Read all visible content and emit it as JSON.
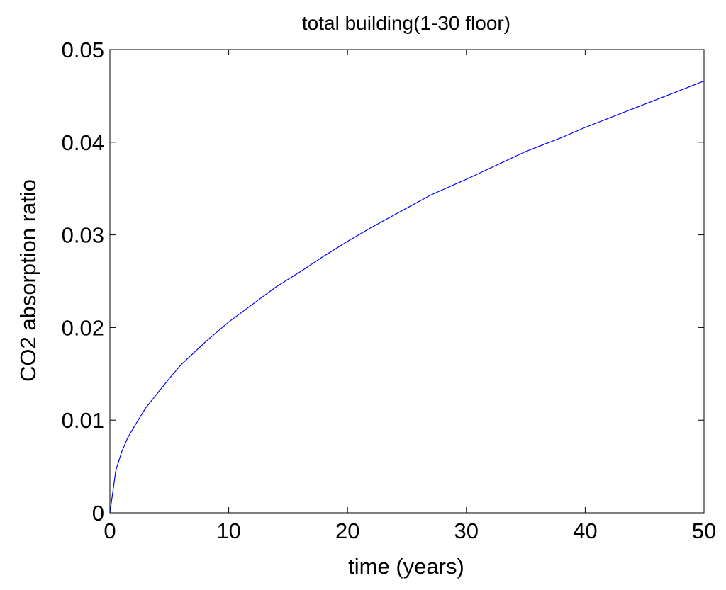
{
  "chart_data": {
    "type": "line",
    "title": "total building(1-30 floor)",
    "xlabel": "time (years)",
    "ylabel": "CO2 absorption ratio",
    "xlim": [
      0,
      50
    ],
    "ylim": [
      0,
      0.05
    ],
    "xticks": [
      0,
      10,
      20,
      30,
      40,
      50
    ],
    "xtick_labels": [
      "0",
      "10",
      "20",
      "30",
      "40",
      "50"
    ],
    "yticks": [
      0,
      0.01,
      0.02,
      0.03,
      0.04,
      0.05
    ],
    "ytick_labels": [
      "0",
      "0.01",
      "0.02",
      "0.03",
      "0.04",
      "0.05"
    ],
    "grid": false,
    "legend": "none",
    "series": [
      {
        "color": "#0000ff",
        "x": [
          0,
          0.5,
          1,
          1.5,
          2,
          3,
          4,
          5,
          6,
          7,
          8,
          10,
          12,
          14,
          16,
          18,
          20,
          22,
          25,
          27,
          30,
          33,
          35,
          38,
          40,
          42,
          45,
          48,
          50
        ],
        "y": [
          0,
          0.0046,
          0.0066,
          0.0081,
          0.0092,
          0.0113,
          0.0129,
          0.0145,
          0.016,
          0.0172,
          0.0184,
          0.0206,
          0.0225,
          0.0244,
          0.026,
          0.0277,
          0.0293,
          0.0308,
          0.0329,
          0.0343,
          0.036,
          0.0378,
          0.039,
          0.0405,
          0.0416,
          0.0426,
          0.0441,
          0.0456,
          0.0466
        ]
      }
    ]
  }
}
